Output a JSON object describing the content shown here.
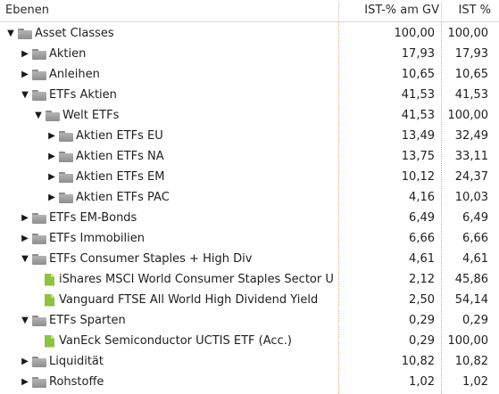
{
  "header": {
    "col_name": "Ebenen",
    "col_gv": "IST-% am GV",
    "col_ist": "IST %"
  },
  "rows": [
    {
      "label": "Asset Classes",
      "gv": "100,00",
      "ist": "100,00",
      "expanded": true,
      "icon": "folder-icon"
    },
    {
      "label": "Aktien",
      "gv": "17,93",
      "ist": "17,93",
      "expanded": false,
      "icon": "folder-icon"
    },
    {
      "label": "Anleihen",
      "gv": "10,65",
      "ist": "10,65",
      "expanded": false,
      "icon": "folder-icon"
    },
    {
      "label": "ETFs Aktien",
      "gv": "41,53",
      "ist": "41,53",
      "expanded": true,
      "icon": "folder-icon"
    },
    {
      "label": "Welt ETFs",
      "gv": "41,53",
      "ist": "100,00",
      "expanded": true,
      "icon": "folder-icon"
    },
    {
      "label": "Aktien ETFs EU",
      "gv": "13,49",
      "ist": "32,49",
      "expanded": false,
      "icon": "folder-icon"
    },
    {
      "label": "Aktien ETFs NA",
      "gv": "13,75",
      "ist": "33,11",
      "expanded": false,
      "icon": "folder-icon"
    },
    {
      "label": "Aktien ETFs EM",
      "gv": "10,12",
      "ist": "24,37",
      "expanded": false,
      "icon": "folder-icon"
    },
    {
      "label": "Aktien ETFs PAC",
      "gv": "4,16",
      "ist": "10,03",
      "expanded": false,
      "icon": "folder-icon"
    },
    {
      "label": "ETFs EM-Bonds",
      "gv": "6,49",
      "ist": "6,49",
      "expanded": false,
      "icon": "folder-icon"
    },
    {
      "label": "ETFs Immobilien",
      "gv": "6,66",
      "ist": "6,66",
      "expanded": false,
      "icon": "folder-icon"
    },
    {
      "label": "ETFs Consumer Staples + High Div",
      "gv": "4,61",
      "ist": "4,61",
      "expanded": true,
      "icon": "folder-icon"
    },
    {
      "label": "iShares MSCI World Consumer Staples Sector U",
      "gv": "2,12",
      "ist": "45,86",
      "icon": "security-icon"
    },
    {
      "label": "Vanguard FTSE All World High Dividend Yield",
      "gv": "2,50",
      "ist": "54,14",
      "icon": "security-icon"
    },
    {
      "label": "ETFs Sparten",
      "gv": "0,29",
      "ist": "0,29",
      "expanded": true,
      "icon": "folder-icon"
    },
    {
      "label": "VanEck Semiconductor UCTIS ETF (Acc.)",
      "gv": "0,29",
      "ist": "100,00",
      "icon": "security-icon"
    },
    {
      "label": "Liquidität",
      "gv": "10,82",
      "ist": "10,82",
      "expanded": false,
      "icon": "folder-icon"
    },
    {
      "label": "Rohstoffe",
      "gv": "1,02",
      "ist": "1,02",
      "expanded": false,
      "icon": "folder-icon"
    }
  ]
}
